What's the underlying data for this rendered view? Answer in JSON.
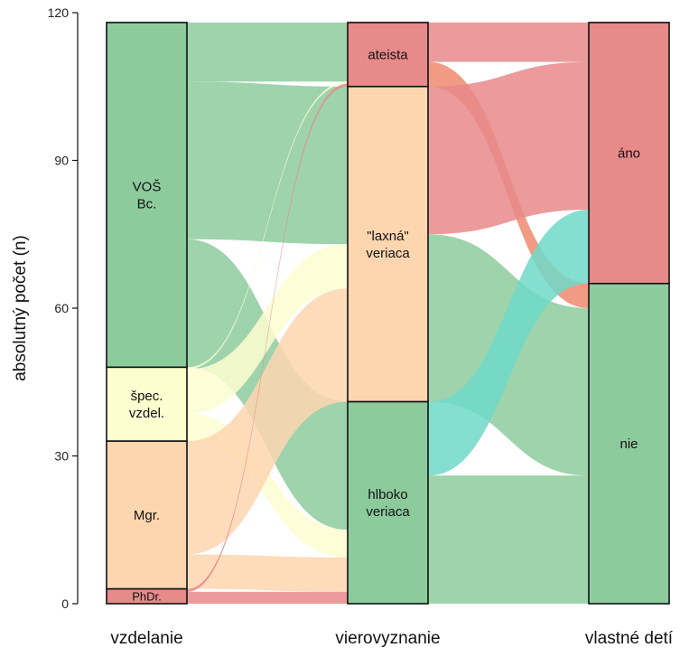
{
  "chart_data": {
    "type": "alluvial",
    "title": "",
    "ylabel": "absolutný počet (n)",
    "ylim": [
      0,
      120
    ],
    "yticks": [
      0,
      30,
      60,
      90,
      120
    ],
    "axes": [
      {
        "name": "vzdelanie",
        "categories": [
          {
            "key": "vos_bc",
            "label": [
              "VOŠ",
              "Bc."
            ],
            "value": 70
          },
          {
            "key": "spec",
            "label": [
              "špec.",
              "vzdel."
            ],
            "value": 15
          },
          {
            "key": "mgr",
            "label": [
              "Mgr."
            ],
            "value": 30
          },
          {
            "key": "phdr",
            "label": [
              "PhDr."
            ],
            "value": 3
          }
        ]
      },
      {
        "name": "vierovyznanie",
        "categories": [
          {
            "key": "ateista",
            "label": [
              "ateista"
            ],
            "value": 13
          },
          {
            "key": "laxna",
            "label": [
              "\"laxná\"",
              "veriaca"
            ],
            "value": 64
          },
          {
            "key": "hlboko",
            "label": [
              "hlboko",
              "veriaca"
            ],
            "value": 41
          }
        ]
      },
      {
        "name": "vlastné detí",
        "categories": [
          {
            "key": "ano",
            "label": [
              "áno"
            ],
            "value": 53
          },
          {
            "key": "nie",
            "label": [
              "nie"
            ],
            "value": 65
          }
        ]
      }
    ],
    "flows_left": [
      {
        "from": "vos_bc",
        "to": "ateista",
        "value": 12
      },
      {
        "from": "vos_bc",
        "to": "laxna",
        "value": 32
      },
      {
        "from": "vos_bc",
        "to": "hlboko",
        "value": 26
      },
      {
        "from": "spec",
        "to": "ateista",
        "value": 0.4
      },
      {
        "from": "spec",
        "to": "laxna",
        "value": 9
      },
      {
        "from": "spec",
        "to": "hlboko",
        "value": 5.6
      },
      {
        "from": "mgr",
        "to": "ateista",
        "value": 0
      },
      {
        "from": "mgr",
        "to": "laxna",
        "value": 23
      },
      {
        "from": "mgr",
        "to": "hlboko",
        "value": 7
      },
      {
        "from": "phdr",
        "to": "ateista",
        "value": 0.6
      },
      {
        "from": "phdr",
        "to": "laxna",
        "value": 0
      },
      {
        "from": "phdr",
        "to": "hlboko",
        "value": 2.4
      }
    ],
    "flows_right": [
      {
        "from": "ateista",
        "to": "ano",
        "value": 8
      },
      {
        "from": "ateista",
        "to": "nie",
        "value": 5
      },
      {
        "from": "laxna",
        "to": "ano",
        "value": 30
      },
      {
        "from": "laxna",
        "to": "nie",
        "value": 34
      },
      {
        "from": "hlboko",
        "to": "ano",
        "value": 15
      },
      {
        "from": "hlboko",
        "to": "nie",
        "value": 26
      }
    ],
    "colors": {
      "vos_bc": "#8dcb9d",
      "spec": "#fdfdd0",
      "mgr": "#fdd6b0",
      "phdr": "#e78a8a",
      "ateista": "#e78a8a",
      "laxna": "#fdd6b0",
      "hlboko": "#8dcb9d",
      "ano": "#e78a8a",
      "nie": "#8dcb9d",
      "flow_ano": "#e78a8a",
      "flow_nie": "#8dcb9d",
      "flow_hlboko_ano": "#6fd9c8",
      "stroke": "#111111"
    }
  }
}
